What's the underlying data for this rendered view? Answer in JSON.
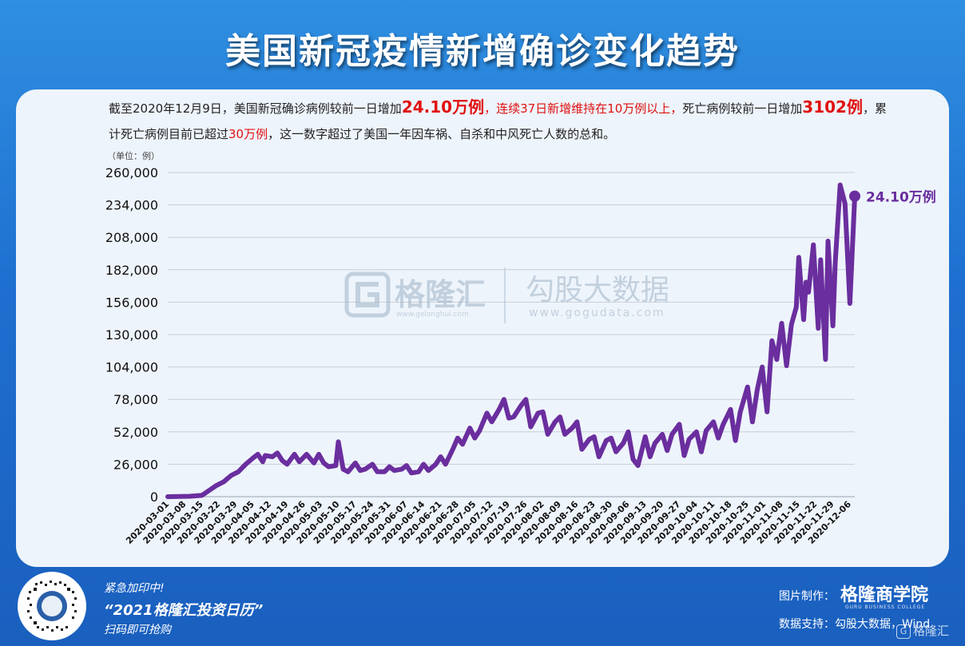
{
  "title": "美国新冠疫情新增确诊变化趋势",
  "description": {
    "p1": "截至2020年12月9日，美国新冠确诊病例较前一日增加",
    "p2": "24.10万例",
    "p3": "，",
    "p4": "连续37日新增维持在10万例以上，",
    "p5": "死亡病例较前一日增加",
    "p6": "3102例",
    "p7": "，累计死亡病例目前已超过",
    "p8": "30万例",
    "p9": "，这一数字超过了美国一年因车祸、自杀和中风死亡人数的总和。"
  },
  "unit_label": "（单位：例）",
  "watermark": {
    "brand1": "格隆汇",
    "url1": "www.gelonghui.com",
    "brand2": "勾股大数据",
    "url2": "www.gogudata.com"
  },
  "chart_data": {
    "type": "line",
    "ylim": [
      0,
      260000
    ],
    "yticks": [
      "0",
      "26,000",
      "52,000",
      "78,000",
      "104,000",
      "130,000",
      "156,000",
      "182,000",
      "208,000",
      "234,000",
      "260,000"
    ],
    "xtick_labels": [
      "2020-03-01",
      "2020-03-08",
      "2020-03-15",
      "2020-03-22",
      "2020-03-29",
      "2020-04-05",
      "2020-04-12",
      "2020-04-19",
      "2020-04-26",
      "2020-05-03",
      "2020-05-10",
      "2020-05-17",
      "2020-05-24",
      "2020-05-31",
      "2020-06-07",
      "2020-06-14",
      "2020-06-21",
      "2020-06-28",
      "2020-07-05",
      "2020-07-12",
      "2020-07-19",
      "2020-07-26",
      "2020-08-02",
      "2020-08-09",
      "2020-08-16",
      "2020-08-23",
      "2020-08-30",
      "2020-09-06",
      "2020-09-13",
      "2020-09-20",
      "2020-09-27",
      "2020-10-04",
      "2020-10-11",
      "2020-10-18",
      "2020-10-25",
      "2020-11-01",
      "2020-11-08",
      "2020-11-15",
      "2020-11-22",
      "2020-11-29",
      "2020-12-06"
    ],
    "series": [
      {
        "color": "#6a2e9e",
        "points": [
          [
            "2020-03-01",
            0
          ],
          [
            "2020-03-10",
            300
          ],
          [
            "2020-03-15",
            1000
          ],
          [
            "2020-03-18",
            5000
          ],
          [
            "2020-03-21",
            9000
          ],
          [
            "2020-03-24",
            12000
          ],
          [
            "2020-03-27",
            17000
          ],
          [
            "2020-03-30",
            20000
          ],
          [
            "2020-04-02",
            26000
          ],
          [
            "2020-04-05",
            31000
          ],
          [
            "2020-04-07",
            34000
          ],
          [
            "2020-04-09",
            28000
          ],
          [
            "2020-04-10",
            33000
          ],
          [
            "2020-04-13",
            32000
          ],
          [
            "2020-04-15",
            35000
          ],
          [
            "2020-04-17",
            29000
          ],
          [
            "2020-04-19",
            26000
          ],
          [
            "2020-04-22",
            34000
          ],
          [
            "2020-04-24",
            28000
          ],
          [
            "2020-04-27",
            34000
          ],
          [
            "2020-04-30",
            27000
          ],
          [
            "2020-05-02",
            34000
          ],
          [
            "2020-05-04",
            27000
          ],
          [
            "2020-05-06",
            24000
          ],
          [
            "2020-05-09",
            25000
          ],
          [
            "2020-05-10",
            44000
          ],
          [
            "2020-05-12",
            22000
          ],
          [
            "2020-05-14",
            20000
          ],
          [
            "2020-05-17",
            27000
          ],
          [
            "2020-05-19",
            21000
          ],
          [
            "2020-05-21",
            22000
          ],
          [
            "2020-05-24",
            26000
          ],
          [
            "2020-05-26",
            20000
          ],
          [
            "2020-05-29",
            20000
          ],
          [
            "2020-05-31",
            24000
          ],
          [
            "2020-06-02",
            21000
          ],
          [
            "2020-06-05",
            22000
          ],
          [
            "2020-06-07",
            25000
          ],
          [
            "2020-06-09",
            19000
          ],
          [
            "2020-06-12",
            20000
          ],
          [
            "2020-06-14",
            26000
          ],
          [
            "2020-06-16",
            21000
          ],
          [
            "2020-06-19",
            26000
          ],
          [
            "2020-06-21",
            32000
          ],
          [
            "2020-06-23",
            26000
          ],
          [
            "2020-06-26",
            38000
          ],
          [
            "2020-06-28",
            47000
          ],
          [
            "2020-06-30",
            42000
          ],
          [
            "2020-07-03",
            55000
          ],
          [
            "2020-07-05",
            47000
          ],
          [
            "2020-07-07",
            53000
          ],
          [
            "2020-07-10",
            67000
          ],
          [
            "2020-07-12",
            60000
          ],
          [
            "2020-07-15",
            70000
          ],
          [
            "2020-07-17",
            78000
          ],
          [
            "2020-07-19",
            63000
          ],
          [
            "2020-07-21",
            64000
          ],
          [
            "2020-07-24",
            73000
          ],
          [
            "2020-07-26",
            78000
          ],
          [
            "2020-07-28",
            56000
          ],
          [
            "2020-07-31",
            67000
          ],
          [
            "2020-08-02",
            68000
          ],
          [
            "2020-08-04",
            50000
          ],
          [
            "2020-08-07",
            60000
          ],
          [
            "2020-08-09",
            64000
          ],
          [
            "2020-08-11",
            50000
          ],
          [
            "2020-08-14",
            55000
          ],
          [
            "2020-08-16",
            60000
          ],
          [
            "2020-08-18",
            38000
          ],
          [
            "2020-08-21",
            46000
          ],
          [
            "2020-08-23",
            48000
          ],
          [
            "2020-08-25",
            32000
          ],
          [
            "2020-08-28",
            45000
          ],
          [
            "2020-08-30",
            47000
          ],
          [
            "2020-09-01",
            36000
          ],
          [
            "2020-09-04",
            43000
          ],
          [
            "2020-09-06",
            52000
          ],
          [
            "2020-09-08",
            30000
          ],
          [
            "2020-09-10",
            25000
          ],
          [
            "2020-09-13",
            48000
          ],
          [
            "2020-09-15",
            32000
          ],
          [
            "2020-09-17",
            43000
          ],
          [
            "2020-09-20",
            50000
          ],
          [
            "2020-09-22",
            37000
          ],
          [
            "2020-09-24",
            50000
          ],
          [
            "2020-09-27",
            58000
          ],
          [
            "2020-09-29",
            33000
          ],
          [
            "2020-10-01",
            46000
          ],
          [
            "2020-10-04",
            52000
          ],
          [
            "2020-10-06",
            36000
          ],
          [
            "2020-10-08",
            53000
          ],
          [
            "2020-10-11",
            60000
          ],
          [
            "2020-10-13",
            47000
          ],
          [
            "2020-10-15",
            58000
          ],
          [
            "2020-10-18",
            70000
          ],
          [
            "2020-10-20",
            45000
          ],
          [
            "2020-10-22",
            68000
          ],
          [
            "2020-10-25",
            88000
          ],
          [
            "2020-10-27",
            60000
          ],
          [
            "2020-10-29",
            86000
          ],
          [
            "2020-10-31",
            104000
          ],
          [
            "2020-11-02",
            68000
          ],
          [
            "2020-11-04",
            125000
          ],
          [
            "2020-11-06",
            110000
          ],
          [
            "2020-11-08",
            139000
          ],
          [
            "2020-11-10",
            105000
          ],
          [
            "2020-11-12",
            138000
          ],
          [
            "2020-11-14",
            152000
          ],
          [
            "2020-11-15",
            192000
          ],
          [
            "2020-11-17",
            142000
          ],
          [
            "2020-11-18",
            172000
          ],
          [
            "2020-11-19",
            164000
          ],
          [
            "2020-11-21",
            202000
          ],
          [
            "2020-11-23",
            135000
          ],
          [
            "2020-11-24",
            190000
          ],
          [
            "2020-11-26",
            110000
          ],
          [
            "2020-11-27",
            205000
          ],
          [
            "2020-11-29",
            137000
          ],
          [
            "2020-11-30",
            188000
          ],
          [
            "2020-12-02",
            250000
          ],
          [
            "2020-12-04",
            235000
          ],
          [
            "2020-12-06",
            155000
          ],
          [
            "2020-12-08",
            241000
          ]
        ]
      }
    ],
    "end_label": "24.10万例"
  },
  "footer": {
    "promo_line1": "紧急加印中!",
    "promo_line2": "“2021格隆汇投资日历”",
    "promo_line3": "扫码即可抢购",
    "credit_made_label": "图片制作：",
    "brand": "格隆商学院",
    "brand_sub": "GURU BUSINESS COLLEGE",
    "credit_data": "数据支持：勾股大数据，Wind",
    "corner_logo": "格隆汇",
    "corner_logo_glyph": "G"
  },
  "colors": {
    "background": "#2272d4",
    "card": "#eef4fb",
    "line": "#6a2e9e",
    "highlight": "#e01010"
  }
}
